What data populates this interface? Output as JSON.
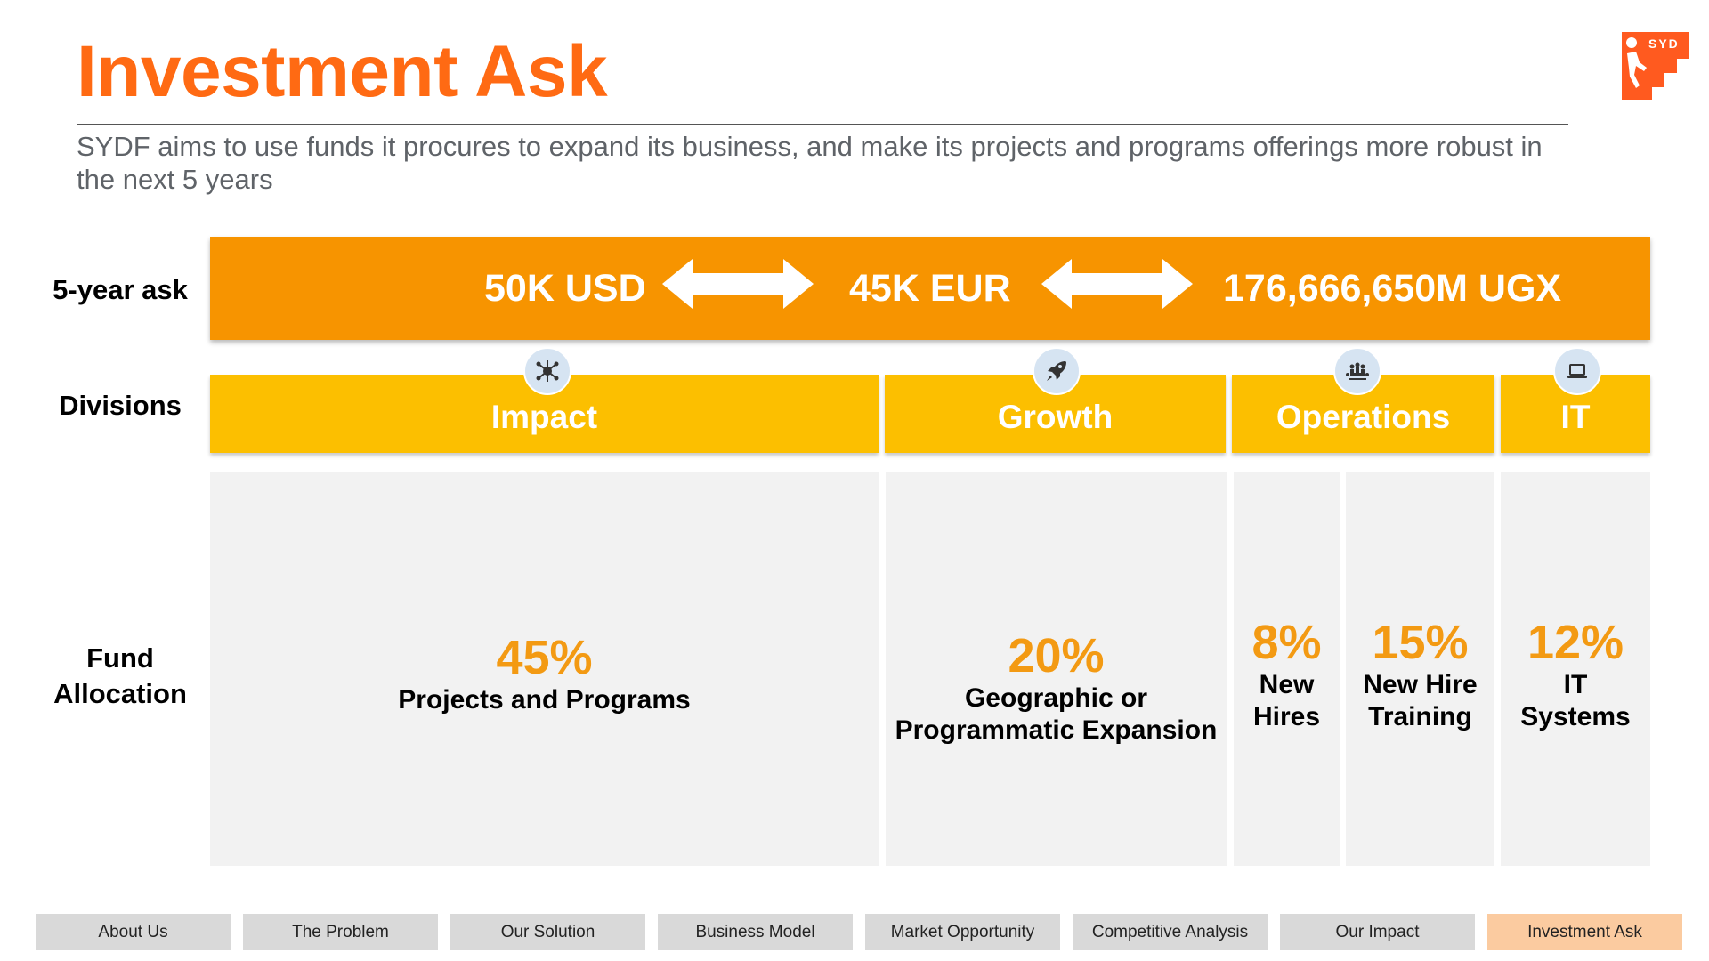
{
  "header": {
    "title": "Investment Ask",
    "subtitle": "SYDF aims to use funds it procures to expand its business, and make its projects and programs offerings more robust in the next 5 years"
  },
  "logo": {
    "text": "SYD",
    "icon": "climbing-person-stairs-logo",
    "color": "#ff5a1f"
  },
  "rows": {
    "ask_label": "5-year ask",
    "divisions_label": "Divisions",
    "fund_label_line1": "Fund",
    "fund_label_line2": "Allocation"
  },
  "ask": {
    "usd": "50K USD",
    "eur": "45K EUR",
    "ugx": "176,666,650M UGX",
    "arrow_icon": "double-headed-arrow-icon",
    "color": "#f79400"
  },
  "divisions": {
    "impact": {
      "label": "Impact",
      "icon": "network-hub-icon"
    },
    "growth": {
      "label": "Growth",
      "icon": "rocket-icon"
    },
    "operations": {
      "label": "Operations",
      "icon": "team-meeting-icon"
    },
    "it": {
      "label": "IT",
      "icon": "laptop-icon"
    },
    "color": "#fcbf00"
  },
  "allocations": [
    {
      "percent": "45%",
      "line1": "Projects and Programs",
      "line2": ""
    },
    {
      "percent": "20%",
      "line1": "Geographic or",
      "line2": "Programmatic Expansion"
    },
    {
      "percent": "8%",
      "line1": "New",
      "line2": "Hires"
    },
    {
      "percent": "15%",
      "line1": "New Hire",
      "line2": "Training"
    },
    {
      "percent": "12%",
      "line1": "IT",
      "line2": "Systems"
    }
  ],
  "nav": {
    "items": [
      "About Us",
      "The Problem",
      "Our Solution",
      "Business Model",
      "Market Opportunity",
      "Competitive Analysis",
      "Our Impact",
      "Investment Ask"
    ],
    "active": "Investment Ask"
  }
}
